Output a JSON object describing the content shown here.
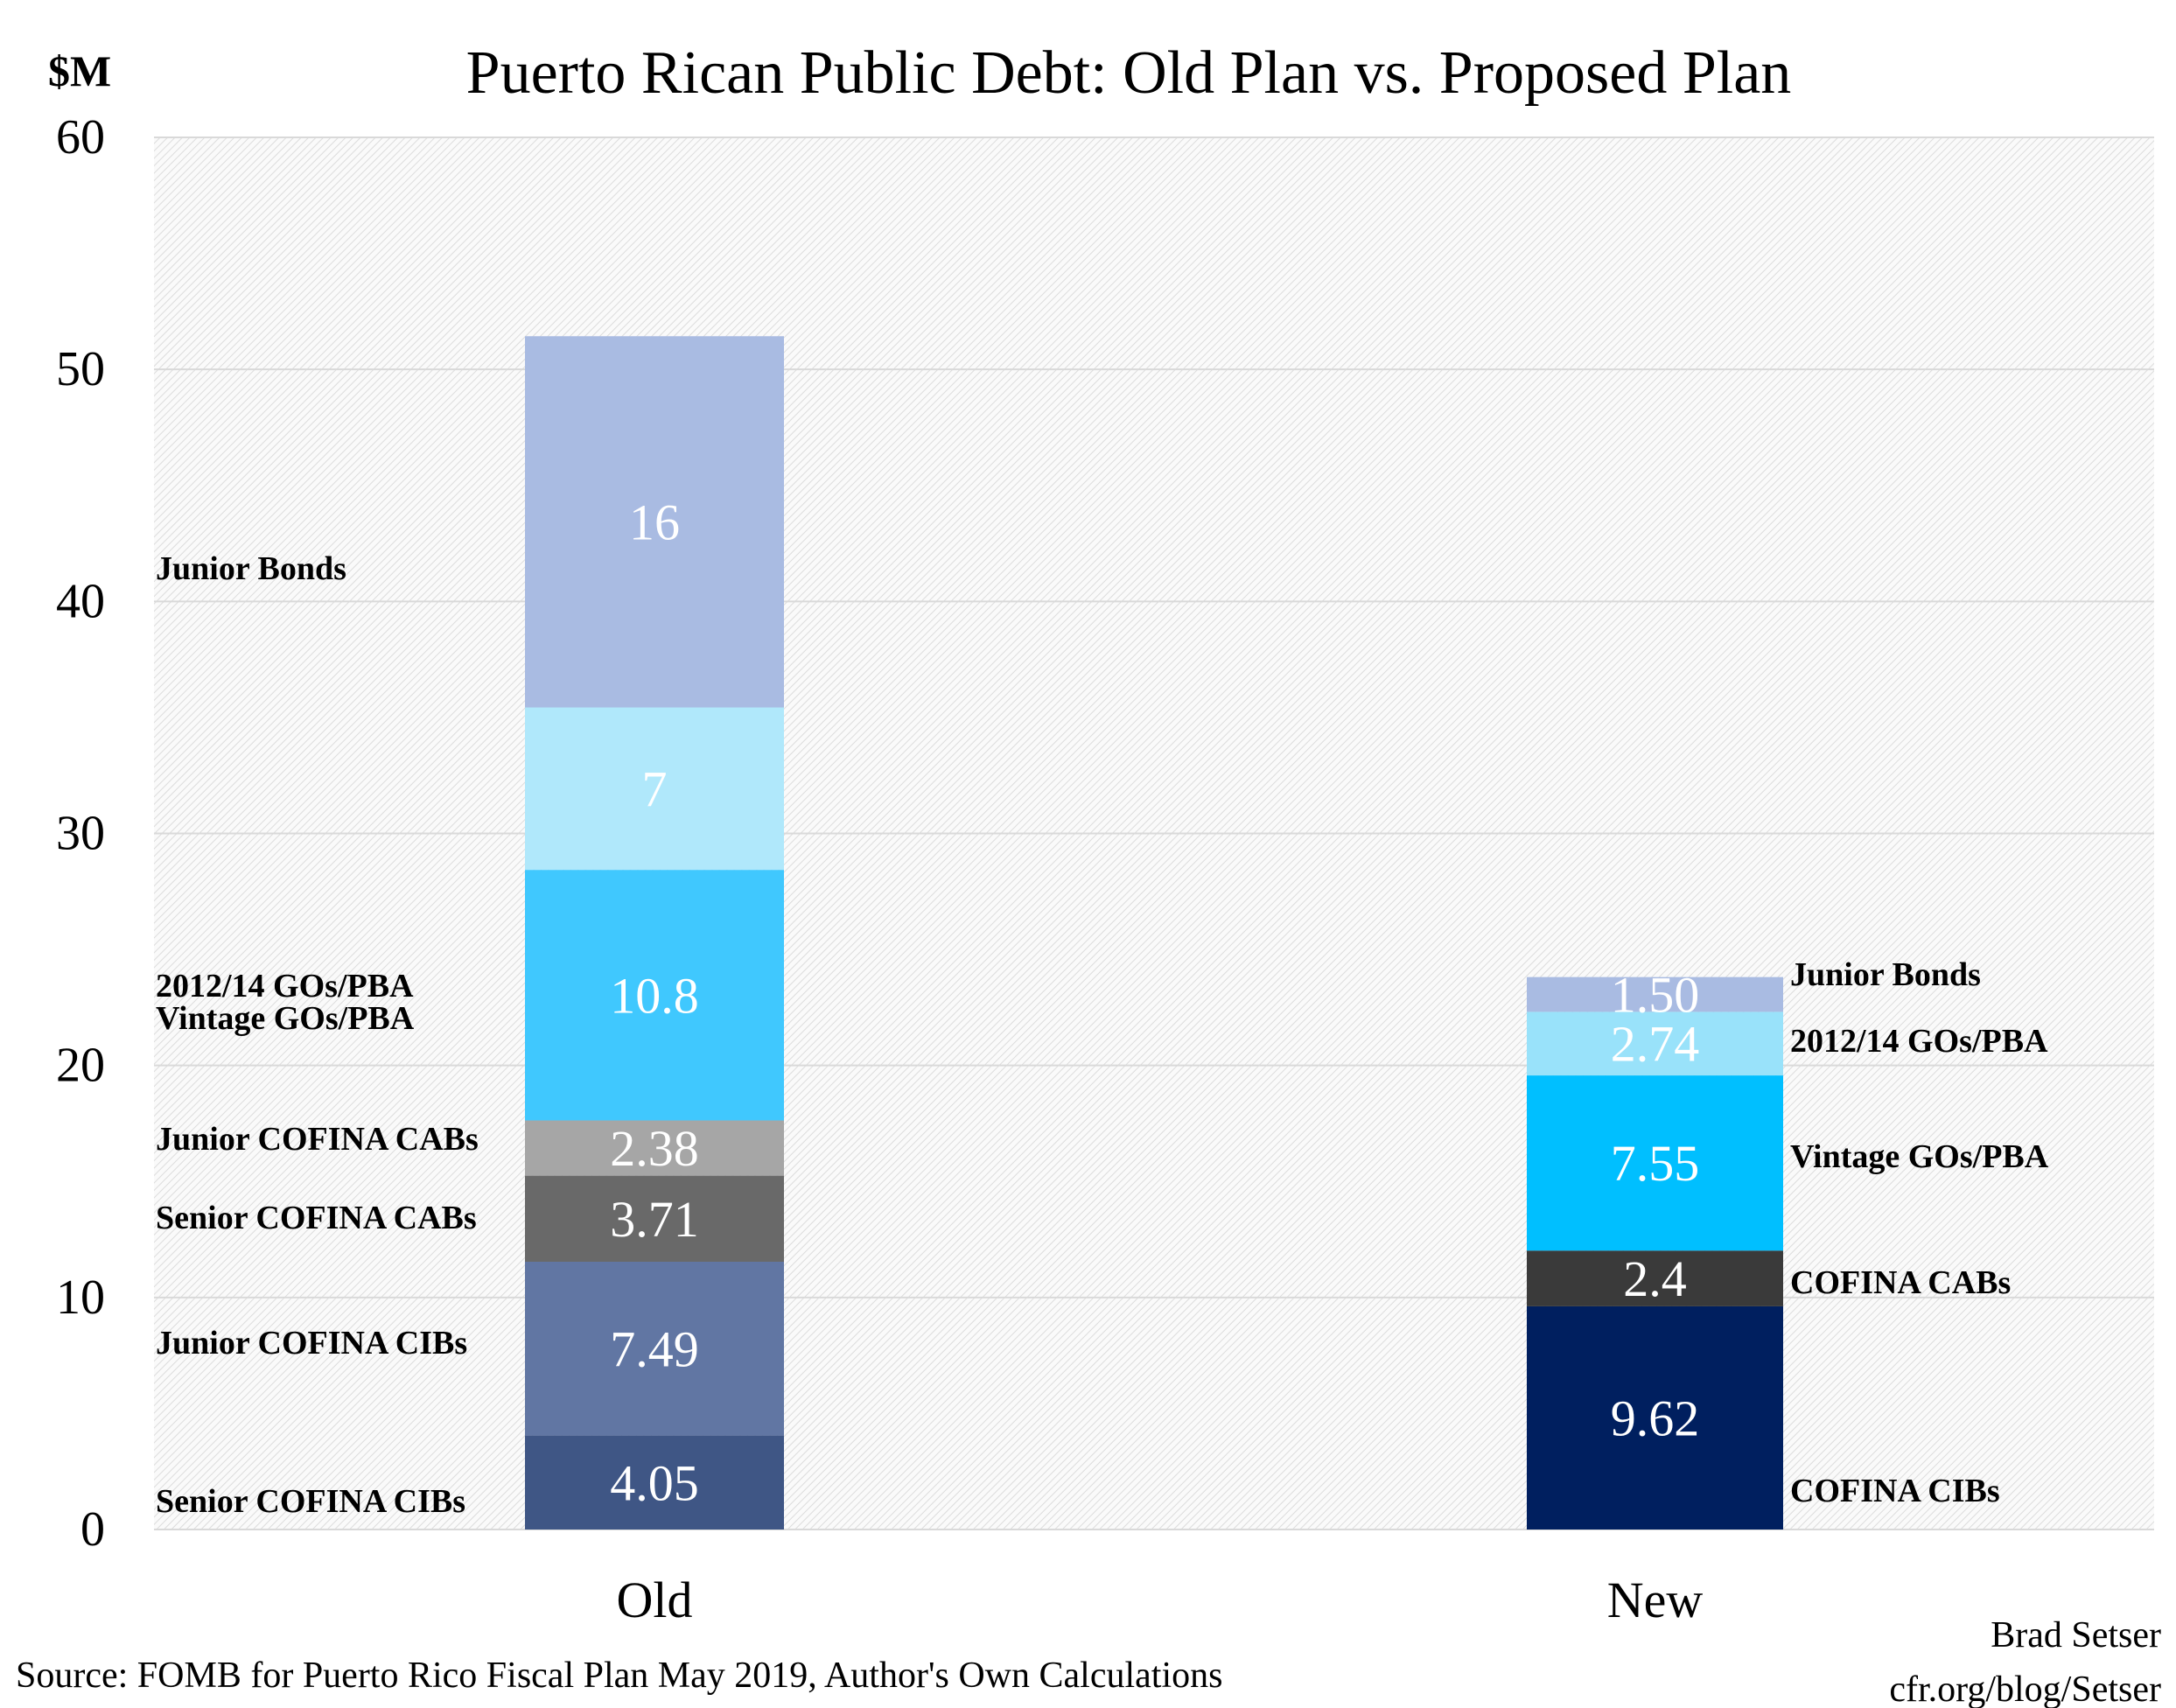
{
  "chart_data": {
    "type": "stacked-bar",
    "title": "Puerto Rican Public Debt: Old Plan vs. Proposed Plan",
    "ylabel": "$M",
    "xlabel": "",
    "ylim": [
      0,
      60
    ],
    "yticks": [
      "0",
      "10",
      "20",
      "30",
      "40",
      "50",
      "60"
    ],
    "grid": true,
    "categories": [
      "Old",
      "New"
    ],
    "stacks": [
      {
        "category": "Old",
        "segments": [
          {
            "name": "Senior COFINA CIBs",
            "value": 4.05,
            "label": "4.05",
            "color": "#3f5685"
          },
          {
            "name": "Junior COFINA CIBs",
            "value": 7.49,
            "label": "7.49",
            "color": "#6176a3"
          },
          {
            "name": "Senior COFINA CABs",
            "value": 3.71,
            "label": "3.71",
            "color": "#696969"
          },
          {
            "name": "Junior COFINA CABs",
            "value": 2.38,
            "label": "2.38",
            "color": "#a6a6a6"
          },
          {
            "name": "Vintage GOs/PBA",
            "value": 10.8,
            "label": "10.8",
            "color": "#40c8fe"
          },
          {
            "name": "2012/14 GOs/PBA",
            "value": 7,
            "label": "7",
            "color": "#b0e8fb"
          },
          {
            "name": "Junior Bonds",
            "value": 16,
            "label": "16",
            "color": "#a9bbe2"
          }
        ]
      },
      {
        "category": "New",
        "segments": [
          {
            "name": "COFINA CIBs",
            "value": 9.62,
            "label": "9.62",
            "color": "#001f5f"
          },
          {
            "name": "COFINA CABs",
            "value": 2.4,
            "label": "2.4",
            "color": "#3a3a3a"
          },
          {
            "name": "Vintage GOs/PBA",
            "value": 7.55,
            "label": "7.55",
            "color": "#00bfff"
          },
          {
            "name": "2012/14 GOs/PBA",
            "value": 2.74,
            "label": "2.74",
            "color": "#99e2fa"
          },
          {
            "name": "Junior Bonds",
            "value": 1.5,
            "label": "1.50",
            "color": "#a9bbe2"
          }
        ]
      }
    ]
  },
  "footer": {
    "source": "Source: FOMB for Puerto Rico Fiscal Plan May 2019, Author's Own Calculations",
    "author": "Brad Setser",
    "url": "cfr.org/blog/Setser"
  }
}
